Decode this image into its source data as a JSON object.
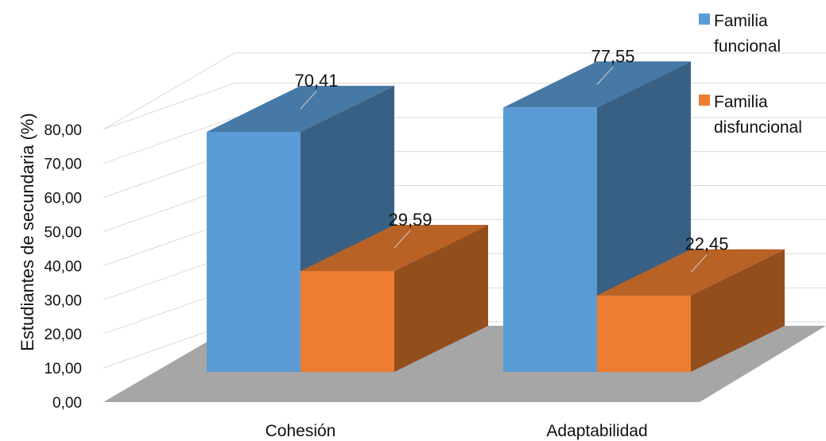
{
  "chart_data": {
    "type": "bar",
    "categories": [
      "Cohesión",
      "Adaptabilidad"
    ],
    "series": [
      {
        "name": "Familia funcional",
        "values": [
          70.41,
          77.55
        ],
        "labels": [
          "70,41",
          "77,55"
        ],
        "color": "#5B9BD5"
      },
      {
        "name": "Familia disfuncional",
        "values": [
          29.59,
          22.45
        ],
        "labels": [
          "29,59",
          "22,45"
        ],
        "color": "#ED7D31"
      }
    ],
    "ylabel": "Estudiantes de secundaria (%)",
    "xlabel": "",
    "ylim": [
      0,
      80
    ],
    "yticks": [
      "0,00",
      "10,00",
      "20,00",
      "30,00",
      "40,00",
      "50,00",
      "60,00",
      "70,00",
      "80,00"
    ],
    "grid": true,
    "legend_position": "top-right",
    "style": "3d-clustered-column"
  },
  "legend": {
    "items": [
      {
        "line1": "Familia",
        "line2": "funcional",
        "color": "#5B9BD5"
      },
      {
        "line1": "Familia",
        "line2": "disfuncional",
        "color": "#ED7D31"
      }
    ]
  }
}
